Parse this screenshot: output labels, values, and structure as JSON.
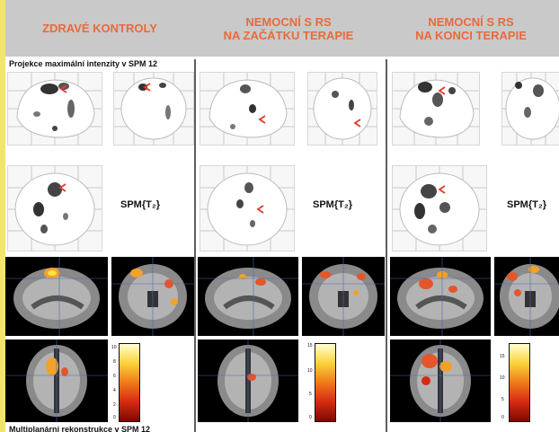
{
  "columns": [
    {
      "title_line1": "ZDRAVÉ KONTROLY",
      "title_line2": ""
    },
    {
      "title_line1": "NEMOCNÍ S RS",
      "title_line2": "NA ZAČÁTKU TERAPIE"
    },
    {
      "title_line1": "NEMOCNÍ S RS",
      "title_line2": "NA KONCI TERAPIE"
    }
  ],
  "sections": {
    "mip_title": "Projekce maximální intenzity v SPM 12",
    "multiplanar_title": "Multiplanární rekonstrukce v SPM 12"
  },
  "spm_labels": [
    "SPM{T₂}",
    "SPM{T₂}",
    "SPM{T₂}"
  ],
  "scales": [
    {
      "ticks": [
        "10",
        "8",
        "6",
        "4",
        "2",
        "0"
      ]
    },
    {
      "ticks": [
        "15",
        "10",
        "5",
        "0"
      ]
    },
    {
      "ticks": [
        "15",
        "10",
        "5",
        "0"
      ]
    }
  ],
  "colors": {
    "accent": "#e86a3c",
    "header_band": "#c9c9c9",
    "page_edge": "#f3e46a"
  }
}
